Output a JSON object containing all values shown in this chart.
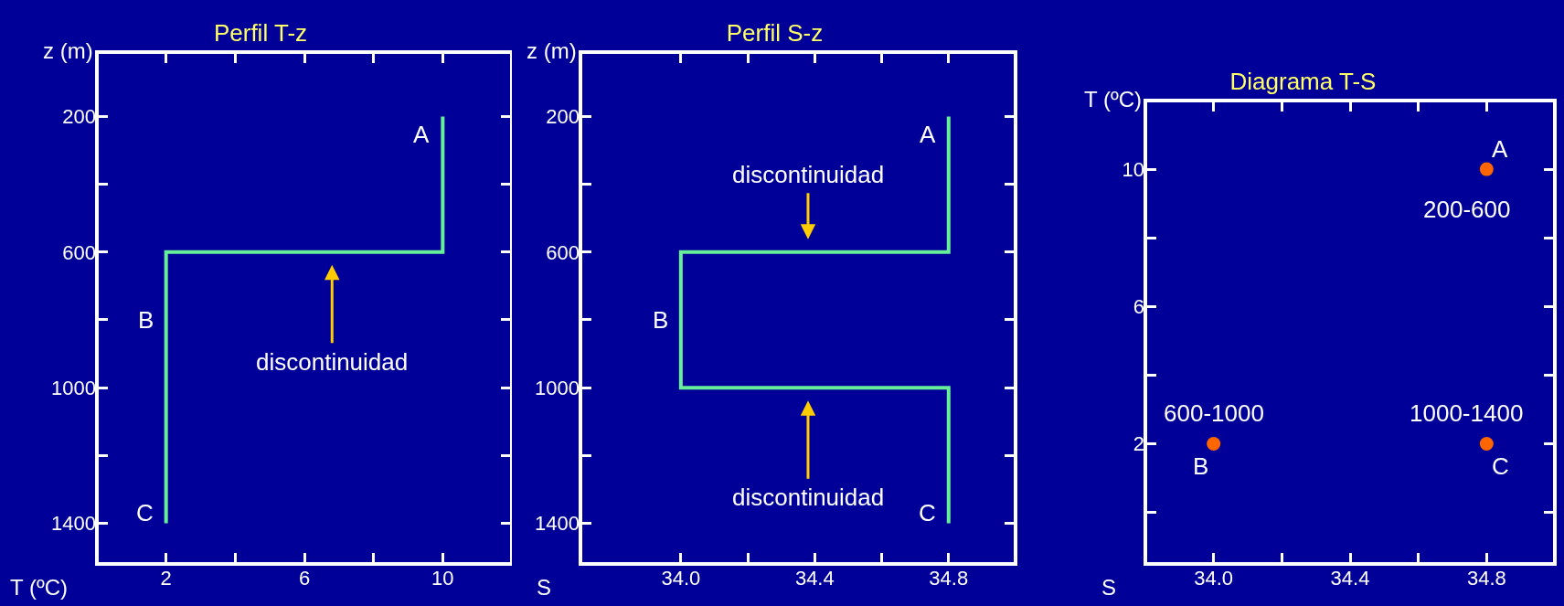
{
  "chart_data": [
    {
      "type": "line",
      "title": "Perfil T-z",
      "xlabel": "T (ºC)",
      "ylabel": "z (m)",
      "xlim": [
        0,
        12
      ],
      "ylim": [
        1520,
        10
      ],
      "xticks": [
        2,
        {
          "value": 4,
          "label": null
        },
        6,
        {
          "value": 8,
          "label": null
        },
        10
      ],
      "yticks": [
        200,
        {
          "value": 400,
          "label": null
        },
        600,
        {
          "value": 800,
          "label": null
        },
        1000,
        {
          "value": 1200,
          "label": null
        },
        1400
      ],
      "series": [
        {
          "color": "#66ee99",
          "x": [
            10,
            10,
            2,
            2
          ],
          "values": [
            200,
            600,
            600,
            1400
          ]
        }
      ],
      "annotations": [
        {
          "text": "A",
          "x": 10,
          "y": 200
        },
        {
          "text": "B",
          "x": 2,
          "y": 800
        },
        {
          "text": "C",
          "x": 2,
          "y": 1400
        },
        {
          "text": "discontinuidad",
          "x": 6.8,
          "y": 600
        }
      ]
    },
    {
      "type": "line",
      "title": "Perfil S-z",
      "xlabel": "S",
      "ylabel": "z (m)",
      "xlim": [
        33.7,
        35.0
      ],
      "ylim": [
        1520,
        10
      ],
      "xticks": [
        {
          "value": 34,
          "label": "34.0"
        },
        {
          "value": 34.2,
          "label": null
        },
        34.4,
        {
          "value": 34.6,
          "label": null
        },
        34.8
      ],
      "yticks": [
        200,
        {
          "value": 400,
          "label": null
        },
        600,
        {
          "value": 800,
          "label": null
        },
        1000,
        {
          "value": 1200,
          "label": null
        },
        1400
      ],
      "series": [
        {
          "color": "#66ee99",
          "x": [
            34.8,
            34.8,
            34.0,
            34.0,
            34.8,
            34.8
          ],
          "values": [
            200,
            600,
            600,
            1000,
            1000,
            1400
          ]
        }
      ],
      "annotations": [
        {
          "text": "A",
          "x": 34.8,
          "y": 200
        },
        {
          "text": "B",
          "x": 34.0,
          "y": 800
        },
        {
          "text": "C",
          "x": 34.8,
          "y": 1400
        },
        {
          "text": "discontinuidad",
          "x": 34.38,
          "y": 600
        },
        {
          "text": "discontinuidad",
          "x": 34.38,
          "y": 1000
        }
      ]
    },
    {
      "type": "scatter",
      "title": "Diagrama T-S",
      "xlabel": "S",
      "ylabel": "T (ºC)",
      "xlim": [
        33.8,
        35.0
      ],
      "ylim": [
        -1.5,
        12
      ],
      "marker": "circle",
      "xticks": [
        {
          "value": 34,
          "label": "34.0"
        },
        {
          "value": 34.2,
          "label": null
        },
        34.4,
        {
          "value": 34.6,
          "label": null
        },
        34.8
      ],
      "yticks": [
        {
          "value": 0,
          "label": null
        },
        2,
        {
          "value": 4,
          "label": null
        },
        6,
        {
          "value": 8,
          "label": null
        },
        10
      ],
      "series": [
        {
          "color": "#ff6600",
          "x": [
            34.8,
            34.0,
            34.8
          ],
          "values": [
            10,
            2,
            2
          ]
        }
      ],
      "annotations": [
        {
          "text": "A",
          "x": 34.8,
          "y": 10
        },
        {
          "text": "200-600",
          "x": 34.8,
          "y": 10
        },
        {
          "text": "B",
          "x": 34.0,
          "y": 2
        },
        {
          "text": "600-1000",
          "x": 34.0,
          "y": 2
        },
        {
          "text": "C",
          "x": 34.8,
          "y": 2
        },
        {
          "text": "1000-1400",
          "x": 34.8,
          "y": 2
        }
      ]
    }
  ]
}
